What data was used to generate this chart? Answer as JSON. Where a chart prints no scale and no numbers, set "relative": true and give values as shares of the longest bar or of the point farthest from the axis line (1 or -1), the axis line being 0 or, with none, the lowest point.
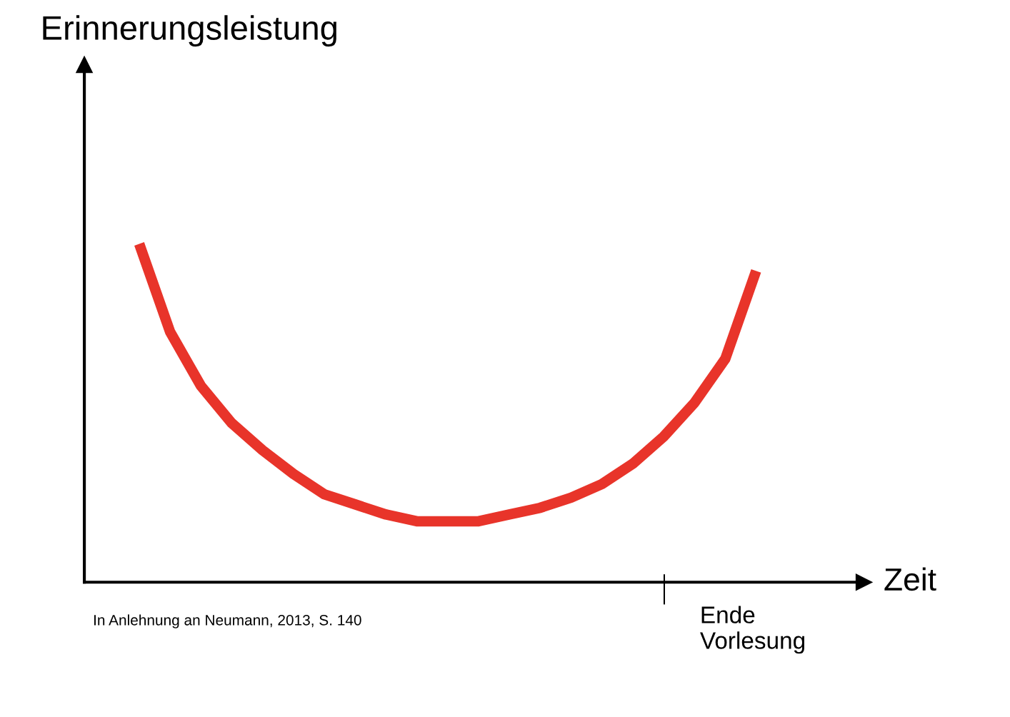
{
  "chart_data": {
    "type": "line",
    "relative": true,
    "xlabel": "Zeit",
    "title": "Erinnerungsleistung",
    "categories": [
      null,
      null,
      null,
      null,
      null,
      null,
      null,
      null,
      null,
      null,
      null,
      null,
      null,
      null,
      null,
      null,
      null,
      null,
      null,
      null,
      null
    ],
    "color": "#e8342a",
    "values": [
      1.0,
      0.74,
      0.58,
      0.47,
      0.39,
      0.32,
      0.26,
      0.23,
      0.2,
      0.18,
      0.18,
      0.18,
      0.2,
      0.22,
      0.25,
      0.29,
      0.35,
      0.43,
      0.53,
      0.66,
      0.92
    ],
    "annotations": [
      "Ende\nVorlesung",
      "In Anlehnung an Neumann, 2013, S. 140"
    ]
  }
}
